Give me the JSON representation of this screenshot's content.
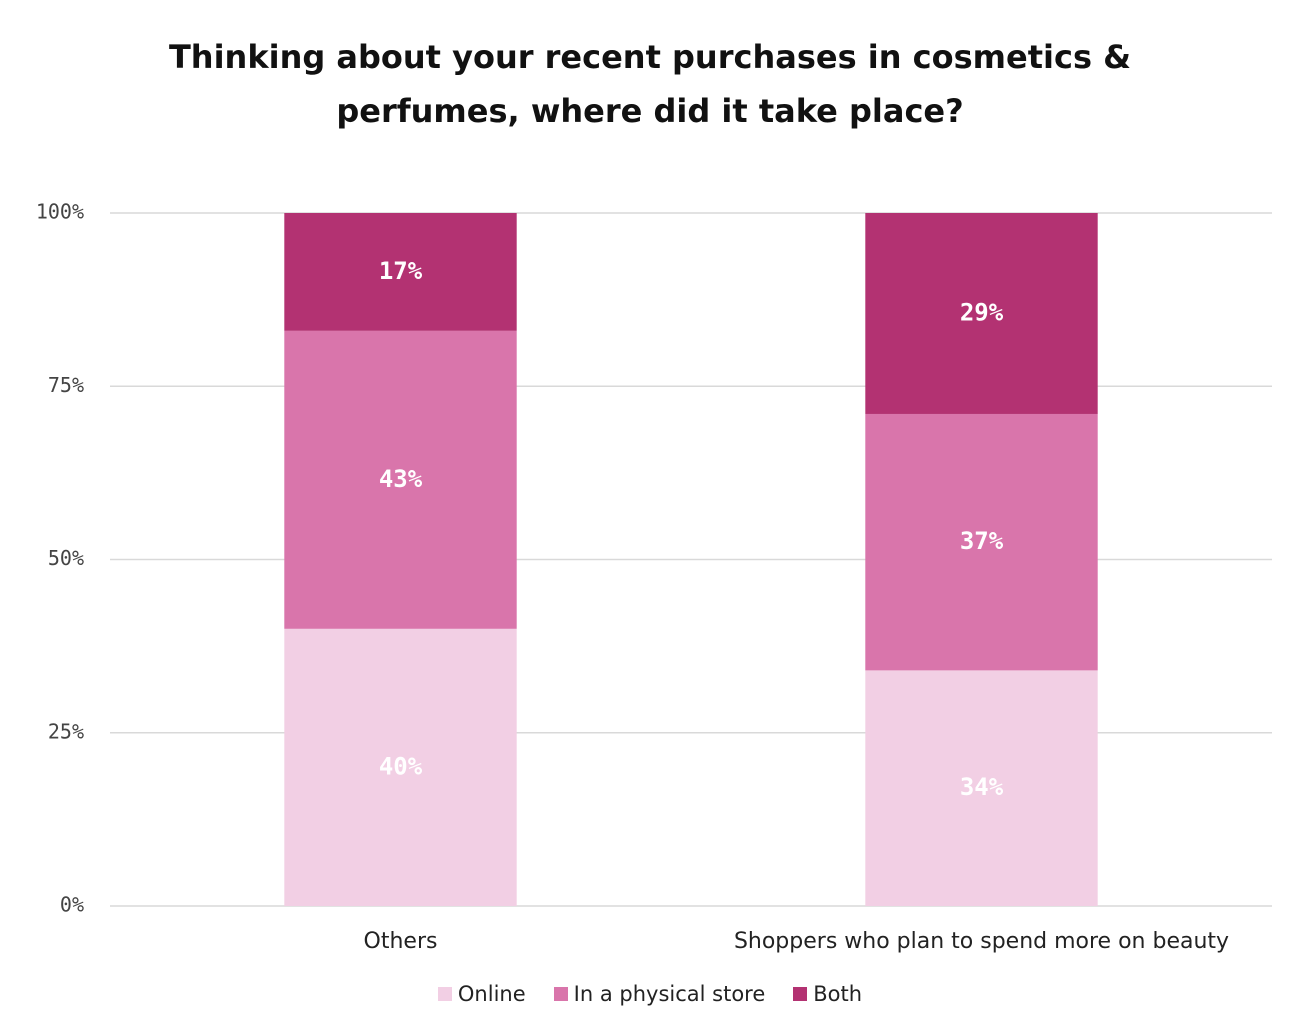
{
  "chart_data": {
    "type": "stacked_bar",
    "title": "Thinking about your recent purchases in cosmetics & perfumes, where did it take place?",
    "categories": [
      "Others",
      "Shoppers who plan to spend more on beauty"
    ],
    "series": [
      {
        "name": "Online",
        "color": "#f2cfe4",
        "values": [
          40,
          34
        ],
        "value_labels": [
          "40%",
          "34%"
        ]
      },
      {
        "name": "In a physical store",
        "color": "#d975ab",
        "values": [
          43,
          37
        ],
        "value_labels": [
          "43%",
          "37%"
        ]
      },
      {
        "name": "Both",
        "color": "#b33272",
        "values": [
          17,
          29
        ],
        "value_labels": [
          "17%",
          "29%"
        ]
      }
    ],
    "ylim": [
      0,
      100
    ],
    "yticks": [
      {
        "value": 0,
        "label": "0%"
      },
      {
        "value": 25,
        "label": "25%"
      },
      {
        "value": 50,
        "label": "50%"
      },
      {
        "value": 75,
        "label": "75%"
      },
      {
        "value": 100,
        "label": "100%"
      }
    ],
    "grid": true,
    "legend": "bottom"
  }
}
